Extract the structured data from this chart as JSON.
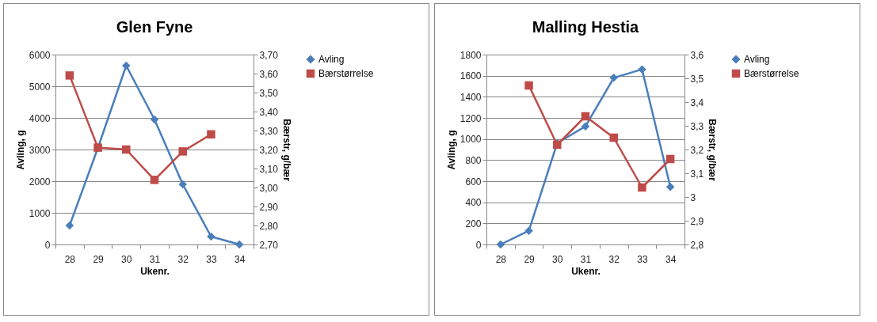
{
  "chart_data": [
    {
      "type": "line",
      "title": "Glen Fyne",
      "xlabel": "Ukenr.",
      "ylabel": "Avling, g",
      "y2label": "Bærstr, g/bær",
      "categories": [
        "28",
        "29",
        "30",
        "31",
        "32",
        "33",
        "34"
      ],
      "ylim": [
        0,
        6000
      ],
      "yticks": [
        0,
        1000,
        2000,
        3000,
        4000,
        5000,
        6000
      ],
      "y2lim": [
        2.7,
        3.7
      ],
      "y2ticks": [
        {
          "value": 2.7,
          "label": "2,70"
        },
        {
          "value": 2.8,
          "label": "2,80"
        },
        {
          "value": 2.9,
          "label": "2,90"
        },
        {
          "value": 3.0,
          "label": "3,00"
        },
        {
          "value": 3.1,
          "label": "3,10"
        },
        {
          "value": 3.2,
          "label": "3,20"
        },
        {
          "value": 3.3,
          "label": "3,30"
        },
        {
          "value": 3.4,
          "label": "3,40"
        },
        {
          "value": 3.5,
          "label": "3,50"
        },
        {
          "value": 3.6,
          "label": "3,60"
        },
        {
          "value": 3.7,
          "label": "3,70"
        }
      ],
      "grid": "y",
      "legend": "right",
      "series": [
        {
          "name": "Avling",
          "color": "#4a7ebb",
          "marker": "diamond",
          "values": [
            600,
            3050,
            5650,
            3950,
            1900,
            250,
            0
          ]
        },
        {
          "name": "Bærstørrelse",
          "color": "#be4b48",
          "marker": "square",
          "axis": "y2",
          "values": [
            3.59,
            3.21,
            3.2,
            3.04,
            3.19,
            3.28,
            null
          ]
        }
      ]
    },
    {
      "type": "line",
      "title": "Malling Hestia",
      "xlabel": "Ukenr.",
      "ylabel": "Avling, g",
      "y2label": "Bærstr, g/bær",
      "categories": [
        "28",
        "29",
        "30",
        "31",
        "32",
        "33",
        "34"
      ],
      "ylim": [
        0,
        1800
      ],
      "yticks": [
        0,
        200,
        400,
        600,
        800,
        1000,
        1200,
        1400,
        1600,
        1800
      ],
      "y2lim": [
        2.8,
        3.6
      ],
      "y2ticks": [
        {
          "value": 2.8,
          "label": "2,8"
        },
        {
          "value": 2.9,
          "label": "2,9"
        },
        {
          "value": 3.0,
          "label": "3"
        },
        {
          "value": 3.1,
          "label": "3,1"
        },
        {
          "value": 3.2,
          "label": "3,2"
        },
        {
          "value": 3.3,
          "label": "3,3"
        },
        {
          "value": 3.4,
          "label": "3,4"
        },
        {
          "value": 3.5,
          "label": "3,5"
        },
        {
          "value": 3.6,
          "label": "3,6"
        }
      ],
      "grid": "y",
      "legend": "right",
      "series": [
        {
          "name": "Avling",
          "color": "#4a7ebb",
          "marker": "diamond",
          "values": [
            0,
            130,
            960,
            1120,
            1580,
            1660,
            545
          ]
        },
        {
          "name": "Bærstørrelse",
          "color": "#be4b48",
          "marker": "square",
          "axis": "y2",
          "values": [
            null,
            3.47,
            3.22,
            3.34,
            3.25,
            3.04,
            3.16
          ]
        }
      ]
    }
  ]
}
